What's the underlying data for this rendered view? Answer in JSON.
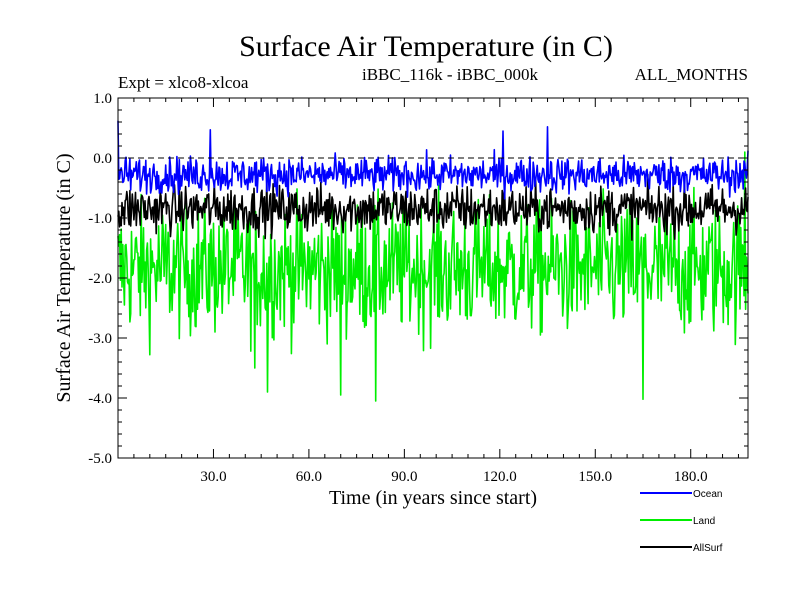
{
  "chart_data": {
    "type": "line",
    "title": "Surface Air Temperature (in C)",
    "left_label": "Expt = xlco8-xlcoa",
    "center_label": "iBBC_116k - iBBC_000k",
    "right_label": "ALL_MONTHS",
    "xlabel": "Time (in years since start)",
    "ylabel": "Surface Air Temperature (in C)",
    "xlim": [
      0,
      198
    ],
    "ylim": [
      -5.0,
      1.0
    ],
    "x_ticks": [
      30,
      60,
      90,
      120,
      150,
      180
    ],
    "x_tick_labels": [
      "30.0",
      "60.0",
      "90.0",
      "120.0",
      "150.0",
      "180.0"
    ],
    "y_ticks": [
      1.0,
      0.0,
      -1.0,
      -2.0,
      -3.0,
      -4.0,
      -5.0
    ],
    "y_tick_labels": [
      "1.0",
      "0.0",
      "-1.0",
      "-2.0",
      "-3.0",
      "-4.0",
      "-5.0"
    ],
    "reference_line": 0.0,
    "time_step_years": 0.25,
    "series": [
      {
        "name": "Land",
        "color": "#00ee00",
        "mean": -1.85,
        "spread": 0.55,
        "min": -4.05,
        "max": 0.1,
        "marked_values": [
          [
            43,
            -3.5
          ],
          [
            47,
            -3.9
          ],
          [
            70,
            -3.95
          ],
          [
            81,
            -4.05
          ],
          [
            165,
            -4.02
          ],
          [
            197,
            0.1
          ]
        ]
      },
      {
        "name": "AllSurf",
        "color": "#000000",
        "mean": -0.85,
        "spread": 0.2,
        "min": -1.8,
        "max": 0.0,
        "marked_values": []
      },
      {
        "name": "Ocean",
        "color": "#0000ff",
        "mean": -0.28,
        "spread": 0.15,
        "min": -0.8,
        "max": 0.6,
        "marked_values": [
          [
            0,
            0.62
          ],
          [
            29,
            0.47
          ],
          [
            121,
            0.45
          ],
          [
            135,
            0.52
          ]
        ]
      }
    ],
    "legend": {
      "placement": "bottom-right",
      "entries": [
        {
          "label": "Ocean",
          "color": "#0000ff"
        },
        {
          "label": "Land",
          "color": "#00ee00"
        },
        {
          "label": "AllSurf",
          "color": "#000000"
        }
      ]
    }
  }
}
